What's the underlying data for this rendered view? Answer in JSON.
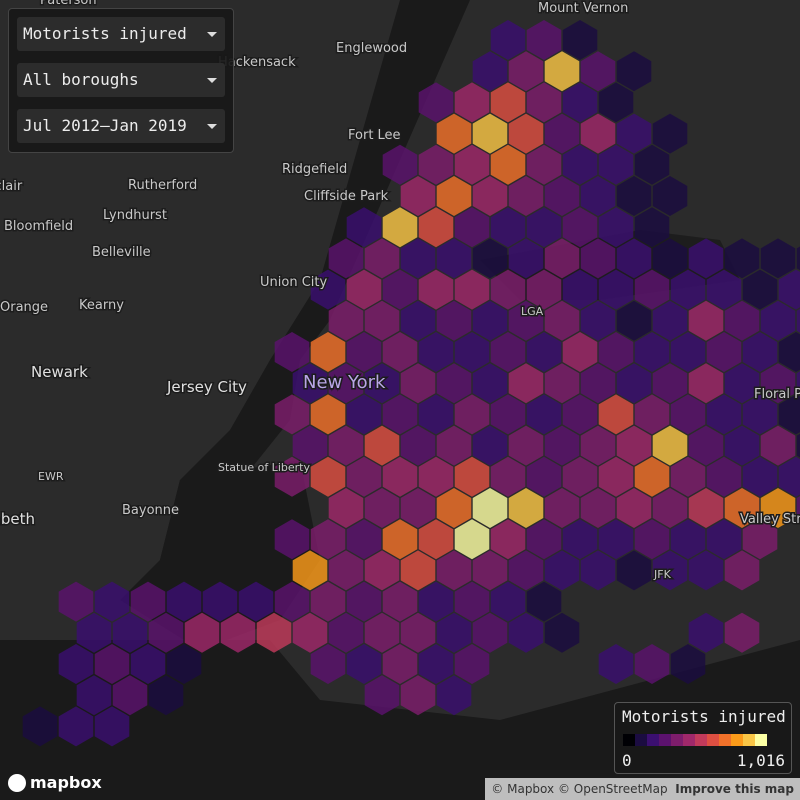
{
  "controls": {
    "metric": "Motorists injured",
    "borough": "All boroughs",
    "period": "Jul 2012–Jan 2019"
  },
  "legend": {
    "title": "Motorists injured",
    "min": 0,
    "max": {
      "value": 1016,
      "label": "1,016"
    },
    "colors": [
      "#000004",
      "#1b0c41",
      "#3b0f70",
      "#5c126e",
      "#7e1d6c",
      "#a0286a",
      "#c23a5b",
      "#de4f42",
      "#f1712a",
      "#fb9b1a",
      "#f9c646",
      "#fcffa4"
    ]
  },
  "places": [
    "Paterson",
    "Mount Vernon",
    "Englewood",
    "Hackensack",
    "Fort Lee",
    "Ridgefield",
    "Cliffside Park",
    "Montclair",
    "Rutherford",
    "Lyndhurst",
    "Bloomfield",
    "Belleville",
    "Union City",
    "Kearny",
    "Orange",
    "Newark",
    "Jersey City",
    "New York",
    "LGA",
    "EWR",
    "Statue of Liberty",
    "Bayonne",
    "JFK",
    "Floral Park",
    "Valley Stream",
    "Elizabeth"
  ],
  "logo": "mapbox",
  "attribution": {
    "copyright": "© Mapbox © OpenStreetMap",
    "link": "Improve this map"
  },
  "hexbins": {
    "rows": [
      [
        null,
        null,
        null,
        null,
        null,
        null,
        null,
        null,
        null,
        null,
        null,
        null,
        null,
        200,
        300,
        150,
        null,
        null,
        null,
        null,
        null,
        null
      ],
      [
        null,
        null,
        null,
        null,
        null,
        null,
        null,
        null,
        null,
        null,
        null,
        null,
        250,
        400,
        900,
        300,
        150,
        null,
        null,
        null,
        null,
        null
      ],
      [
        null,
        null,
        null,
        null,
        null,
        null,
        null,
        null,
        null,
        null,
        null,
        300,
        500,
        600,
        400,
        250,
        100,
        null,
        null,
        null,
        null,
        null
      ],
      [
        null,
        null,
        null,
        null,
        null,
        null,
        null,
        null,
        null,
        null,
        null,
        700,
        850,
        600,
        300,
        450,
        200,
        150,
        null,
        null,
        null,
        null
      ],
      [
        null,
        null,
        null,
        null,
        null,
        null,
        null,
        null,
        null,
        null,
        300,
        400,
        500,
        700,
        350,
        250,
        200,
        100,
        null,
        null,
        null,
        null
      ],
      [
        null,
        null,
        null,
        null,
        null,
        null,
        null,
        null,
        null,
        null,
        450,
        750,
        500,
        400,
        300,
        200,
        150,
        100,
        null,
        null,
        null,
        null
      ],
      [
        null,
        null,
        null,
        null,
        null,
        null,
        null,
        null,
        null,
        200,
        850,
        650,
        300,
        250,
        200,
        300,
        200,
        150,
        null,
        null,
        null,
        null
      ],
      [
        null,
        null,
        null,
        null,
        null,
        null,
        null,
        null,
        300,
        350,
        250,
        200,
        150,
        250,
        400,
        300,
        200,
        150,
        200,
        100,
        150,
        100
      ],
      [
        null,
        null,
        null,
        null,
        null,
        null,
        null,
        null,
        250,
        500,
        300,
        450,
        500,
        400,
        350,
        200,
        250,
        300,
        200,
        250,
        150,
        200
      ],
      [
        null,
        null,
        null,
        null,
        null,
        null,
        null,
        null,
        400,
        350,
        200,
        300,
        250,
        300,
        400,
        200,
        150,
        250,
        450,
        300,
        200,
        250
      ],
      [
        null,
        null,
        null,
        null,
        null,
        null,
        null,
        300,
        750,
        300,
        350,
        250,
        200,
        300,
        250,
        450,
        300,
        200,
        250,
        300,
        200,
        150
      ],
      [
        null,
        null,
        null,
        null,
        null,
        null,
        null,
        250,
        300,
        200,
        400,
        300,
        250,
        500,
        350,
        300,
        200,
        300,
        450,
        250,
        300,
        200
      ],
      [
        null,
        null,
        null,
        null,
        null,
        null,
        null,
        350,
        700,
        250,
        300,
        200,
        350,
        300,
        250,
        300,
        650,
        350,
        300,
        200,
        250,
        150
      ],
      [
        null,
        null,
        null,
        null,
        null,
        null,
        null,
        300,
        400,
        650,
        300,
        400,
        250,
        350,
        300,
        400,
        500,
        900,
        300,
        250,
        350,
        150
      ],
      [
        null,
        null,
        null,
        null,
        null,
        null,
        null,
        400,
        600,
        350,
        500,
        450,
        600,
        400,
        300,
        350,
        500,
        700,
        400,
        300,
        250,
        200
      ],
      [
        null,
        null,
        null,
        null,
        null,
        null,
        null,
        null,
        450,
        400,
        350,
        700,
        1016,
        850,
        400,
        350,
        500,
        400,
        550,
        750,
        800,
        300
      ],
      [
        null,
        null,
        null,
        null,
        null,
        null,
        null,
        300,
        350,
        300,
        700,
        600,
        950,
        500,
        300,
        250,
        200,
        300,
        250,
        200,
        400,
        null
      ],
      [
        null,
        null,
        null,
        null,
        null,
        null,
        null,
        800,
        400,
        450,
        600,
        400,
        350,
        300,
        250,
        200,
        150,
        200,
        250,
        400,
        null,
        null
      ],
      [
        null,
        300,
        250,
        300,
        200,
        250,
        250,
        300,
        350,
        300,
        400,
        250,
        300,
        200,
        150,
        null,
        null,
        null,
        null,
        null,
        null,
        null
      ],
      [
        null,
        200,
        250,
        300,
        500,
        450,
        550,
        500,
        300,
        400,
        350,
        250,
        300,
        200,
        150,
        null,
        null,
        null,
        200,
        350,
        null,
        null
      ],
      [
        null,
        250,
        300,
        200,
        150,
        null,
        null,
        null,
        300,
        250,
        350,
        200,
        300,
        null,
        null,
        null,
        200,
        300,
        150,
        null,
        null,
        null
      ],
      [
        null,
        200,
        300,
        150,
        null,
        null,
        null,
        null,
        null,
        300,
        350,
        200,
        null,
        null,
        null,
        null,
        null,
        null,
        null,
        null,
        null,
        null
      ],
      [
        150,
        200,
        250,
        null,
        null,
        null,
        null,
        null,
        null,
        null,
        null,
        null,
        null,
        null,
        null,
        null,
        null,
        null,
        null,
        null,
        null,
        null
      ]
    ]
  }
}
